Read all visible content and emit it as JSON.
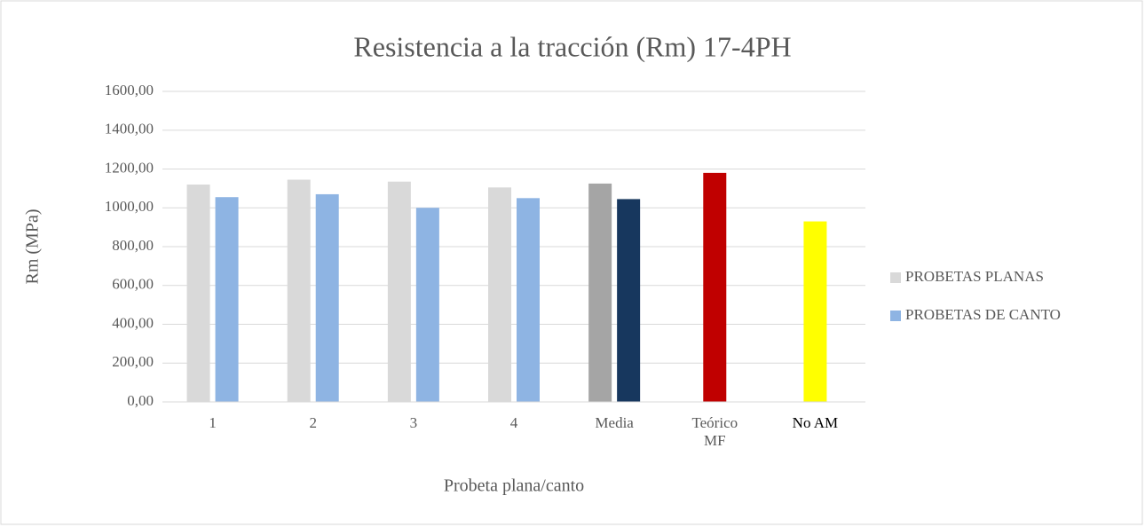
{
  "chart_data": {
    "type": "bar",
    "title": "Resistencia a la tracción (Rm) 17-4PH",
    "x_label": "Probeta plana/canto",
    "y_label": "Rm (MPa)",
    "categories": [
      "1",
      "2",
      "3",
      "4",
      "Media",
      "Teórico MF",
      "No AM"
    ],
    "series": [
      {
        "name": "PROBETAS PLANAS",
        "color": "#d9d9d9",
        "point_colors": [
          "#d9d9d9",
          "#d9d9d9",
          "#d9d9d9",
          "#d9d9d9",
          "#a5a5a5",
          "#c00000",
          "#ffff00"
        ],
        "values": [
          1120,
          1145,
          1135,
          1105,
          1125,
          1180,
          930
        ]
      },
      {
        "name": "PROBETAS DE CANTO",
        "color": "#8eb4e3",
        "point_colors": [
          "#8eb4e3",
          "#8eb4e3",
          "#8eb4e3",
          "#8eb4e3",
          "#17375e",
          "#8eb4e3",
          "#8eb4e3"
        ],
        "values": [
          1055,
          1070,
          1000,
          1050,
          1045,
          null,
          null
        ]
      }
    ],
    "ylim": [
      0,
      1600
    ],
    "yticks": [
      {
        "value": 0,
        "label": "0,00"
      },
      {
        "value": 200,
        "label": "200,00"
      },
      {
        "value": 400,
        "label": "400,00"
      },
      {
        "value": 600,
        "label": "600,00"
      },
      {
        "value": 800,
        "label": "800,00"
      },
      {
        "value": 1000,
        "label": "1000,00"
      },
      {
        "value": 1200,
        "label": "1200,00"
      },
      {
        "value": 1400,
        "label": "1400,00"
      },
      {
        "value": 1600,
        "label": "1600,00"
      }
    ],
    "grid": true,
    "legend": "right"
  }
}
